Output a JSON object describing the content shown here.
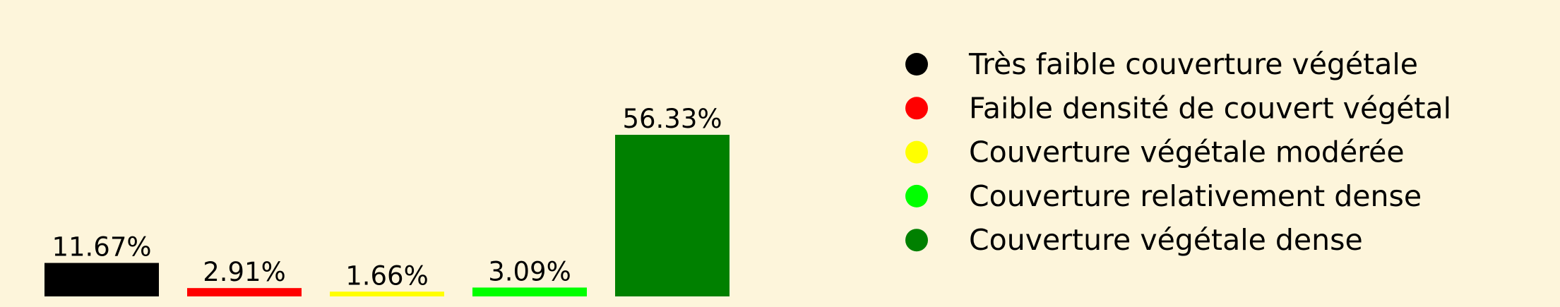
{
  "chart_data": {
    "type": "bar",
    "categories": [
      "Très faible couverture végétale",
      "Faible densité de couvert végétal",
      "Couverture végétale modérée",
      "Couverture relativement dense",
      "Couverture végétale dense"
    ],
    "values": [
      11.67,
      2.91,
      1.66,
      3.09,
      56.33
    ],
    "value_labels": [
      "11.67%",
      "2.91%",
      "1.66%",
      "3.09%",
      "56.33%"
    ],
    "colors": [
      "#000000",
      "#ff0000",
      "#ffff00",
      "#00ff00",
      "#008000"
    ],
    "ylim": [
      0,
      56.33
    ],
    "title": "",
    "xlabel": "",
    "ylabel": "",
    "grid": false,
    "axes_visible": false,
    "legend_placement": "right",
    "legend_marker": "circle"
  },
  "background_color": "#fdf5db"
}
